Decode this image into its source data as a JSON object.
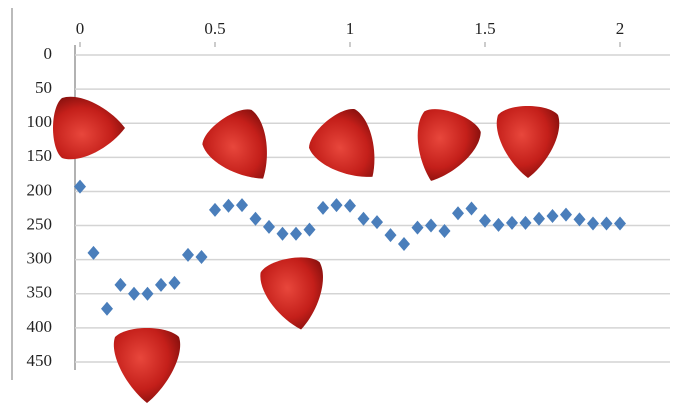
{
  "chart_data": {
    "type": "scatter",
    "color": "#4a7ebb",
    "marker": "diamond",
    "x": [
      0,
      0.05,
      0.1,
      0.15,
      0.2,
      0.25,
      0.3,
      0.35,
      0.4,
      0.45,
      0.5,
      0.55,
      0.6,
      0.65,
      0.7,
      0.75,
      0.8,
      0.85,
      0.9,
      0.95,
      1,
      1.05,
      1.1,
      1.15,
      1.2,
      1.25,
      1.3,
      1.35,
      1.4,
      1.45,
      1.5,
      1.55,
      1.6,
      1.65,
      1.7,
      1.75,
      1.8,
      1.85,
      1.9,
      1.95,
      2
    ],
    "values": [
      193,
      290,
      372,
      337,
      350,
      350,
      337,
      334,
      293,
      296,
      227,
      221,
      220,
      240,
      252,
      262,
      262,
      256,
      224,
      220,
      221,
      240,
      245,
      264,
      277,
      253,
      250,
      258,
      232,
      225,
      243,
      249,
      246,
      246,
      240,
      236,
      234,
      241,
      247,
      247,
      247
    ],
    "xlim": [
      0,
      2
    ],
    "xticks": [
      0,
      0.5,
      1,
      1.5,
      2
    ],
    "ylim": [
      0,
      450
    ],
    "yticks": [
      0,
      50,
      100,
      150,
      200,
      250,
      300,
      350,
      400,
      450
    ],
    "y_inverted": true,
    "x_axis_position": "top",
    "grid": true
  }
}
